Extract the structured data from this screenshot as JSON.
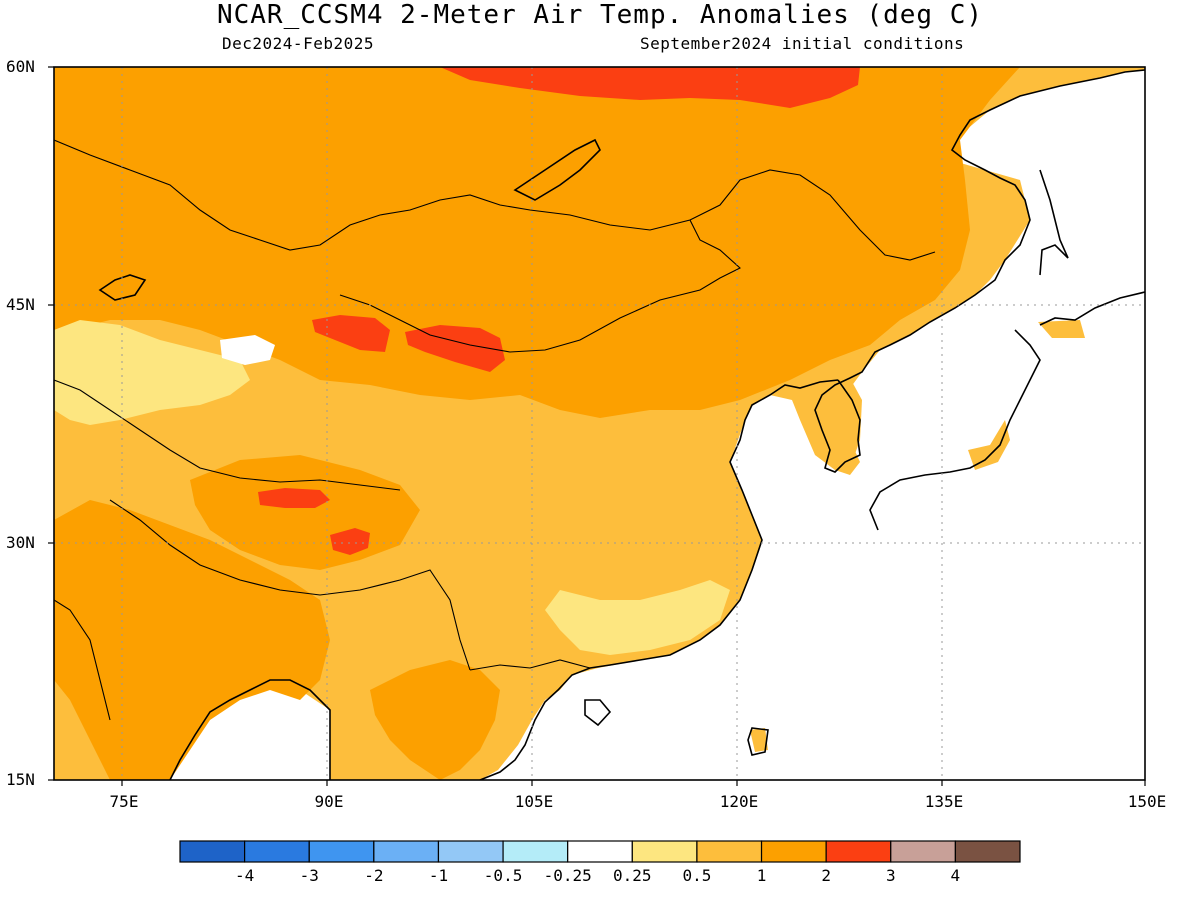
{
  "title": "NCAR_CCSM4 2-Meter Air Temp. Anomalies (deg C)",
  "subtitle_left": "Dec2024-Feb2025",
  "subtitle_right": "September2024 initial conditions",
  "lat_labels": [
    "60N",
    "45N",
    "30N",
    "15N"
  ],
  "lon_labels": [
    "75E",
    "90E",
    "105E",
    "120E",
    "135E",
    "150E"
  ],
  "map_extent": {
    "lon": [
      70,
      150
    ],
    "lat": [
      15,
      60
    ]
  },
  "colorbar": {
    "labels": [
      "-4",
      "-3",
      "-2",
      "-1",
      "-0.5",
      "-0.25",
      "0.25",
      "0.5",
      "1",
      "2",
      "3",
      "4"
    ],
    "colors": [
      "#1e63c8",
      "#2a7ae0",
      "#3f95f0",
      "#6bb0f5",
      "#93c8f6",
      "#b4ecf8",
      "#ffffff",
      "#fde680",
      "#fdbe3c",
      "#fca000",
      "#fb3f12",
      "#c8a098",
      "#7a5242"
    ]
  },
  "colors": {
    "ocean": "#ffffff",
    "land_default": "#fdbe3c",
    "coast": "#000000"
  }
}
